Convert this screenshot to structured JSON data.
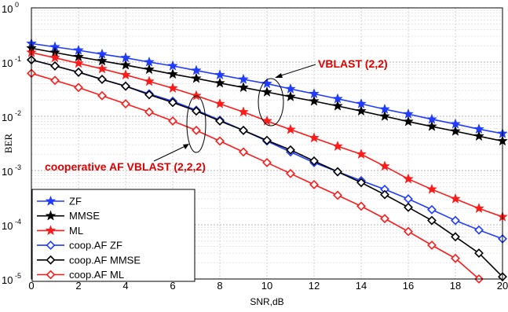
{
  "chart_data": {
    "type": "line",
    "title": "",
    "xlabel": "SNR,dB",
    "ylabel": "BER",
    "xlim": [
      0,
      20
    ],
    "ylim": [
      1e-05,
      1
    ],
    "yscale": "log",
    "grid": true,
    "legend_position": "bottom-left",
    "x_ticks": [
      0,
      2,
      4,
      6,
      8,
      10,
      12,
      14,
      16,
      18,
      20
    ],
    "x_tick_labels": [
      "0",
      "2",
      "4",
      "6",
      "8",
      "10",
      "12",
      "14",
      "16",
      "18",
      "20"
    ],
    "y_ticks": [
      1e-05,
      0.0001,
      0.001,
      0.01,
      0.1,
      1
    ],
    "y_tick_labels": [
      {
        "base": "10",
        "exp": "-5"
      },
      {
        "base": "10",
        "exp": "-4"
      },
      {
        "base": "10",
        "exp": "-3"
      },
      {
        "base": "10",
        "exp": "-2"
      },
      {
        "base": "10",
        "exp": "-1"
      },
      {
        "base": "10",
        "exp": "0"
      }
    ],
    "annotations": [
      {
        "text": "VBLAST (2,2)"
      },
      {
        "text": "cooperative AF VBLAST (2,2,2)"
      }
    ],
    "series": [
      {
        "name": "ZF",
        "color": "#1f3bff",
        "marker": "star",
        "x": [
          0,
          1,
          2,
          3,
          4,
          5,
          6,
          7,
          8,
          9,
          10,
          11,
          12,
          13,
          14,
          15,
          16,
          17,
          18,
          19,
          20
        ],
        "y": [
          0.22,
          0.19,
          0.165,
          0.14,
          0.12,
          0.1,
          0.085,
          0.07,
          0.058,
          0.048,
          0.04,
          0.032,
          0.026,
          0.021,
          0.017,
          0.0135,
          0.011,
          0.0088,
          0.0072,
          0.0058,
          0.0048
        ]
      },
      {
        "name": "MMSE",
        "color": "#000000",
        "marker": "star",
        "x": [
          0,
          1,
          2,
          3,
          4,
          5,
          6,
          7,
          8,
          9,
          10,
          11,
          12,
          13,
          14,
          15,
          16,
          17,
          18,
          19,
          20
        ],
        "y": [
          0.18,
          0.15,
          0.125,
          0.105,
          0.088,
          0.073,
          0.06,
          0.05,
          0.041,
          0.034,
          0.028,
          0.023,
          0.019,
          0.0155,
          0.0125,
          0.01,
          0.008,
          0.0065,
          0.0053,
          0.0043,
          0.0035
        ]
      },
      {
        "name": "ML",
        "color": "#ff1a1a",
        "marker": "star",
        "x": [
          0,
          1,
          2,
          3,
          4,
          5,
          6,
          7,
          8,
          9,
          10,
          11,
          12,
          13,
          14,
          15,
          16,
          17,
          18,
          19,
          20
        ],
        "y": [
          0.15,
          0.12,
          0.095,
          0.075,
          0.058,
          0.044,
          0.033,
          0.024,
          0.017,
          0.012,
          0.0082,
          0.0057,
          0.004,
          0.0028,
          0.002,
          0.0012,
          0.0007,
          0.00045,
          0.0003,
          0.0002,
          0.00014
        ]
      },
      {
        "name": "coop.AF ZF",
        "color": "#1f3bff",
        "marker": "diamond",
        "x": [
          0,
          1,
          2,
          3,
          4,
          5,
          6,
          7,
          8,
          9,
          10,
          11,
          12,
          13,
          14,
          15,
          16,
          17,
          18,
          19,
          20
        ],
        "y": [
          0.11,
          0.085,
          0.065,
          0.048,
          0.036,
          0.026,
          0.019,
          0.013,
          0.0085,
          0.0055,
          0.0035,
          0.0022,
          0.0014,
          0.00095,
          0.00065,
          0.00045,
          0.0003,
          0.00019,
          0.00012,
          8e-05,
          5.5e-05
        ]
      },
      {
        "name": "coop.AF MMSE",
        "color": "#000000",
        "marker": "diamond",
        "x": [
          0,
          1,
          2,
          3,
          4,
          5,
          6,
          7,
          8,
          9,
          10,
          11,
          12,
          13,
          14,
          15,
          16,
          17,
          18,
          19,
          20
        ],
        "y": [
          0.11,
          0.085,
          0.065,
          0.048,
          0.036,
          0.025,
          0.018,
          0.0125,
          0.0082,
          0.0055,
          0.0036,
          0.0024,
          0.0015,
          0.00095,
          0.0006,
          0.00036,
          0.00021,
          0.00012,
          6e-05,
          3e-05,
          1.1e-05
        ]
      },
      {
        "name": "coop.AF ML",
        "color": "#ff1a1a",
        "marker": "diamond",
        "x": [
          0,
          1,
          2,
          3,
          4,
          5,
          6,
          7,
          8,
          9,
          10,
          11,
          12,
          13,
          14,
          15,
          16,
          17,
          18,
          19
        ],
        "y": [
          0.062,
          0.046,
          0.034,
          0.024,
          0.017,
          0.012,
          0.0082,
          0.0055,
          0.0035,
          0.0022,
          0.0014,
          0.00088,
          0.00055,
          0.00035,
          0.00022,
          0.00013,
          7.5e-05,
          4.2e-05,
          2.4e-05,
          1e-05
        ]
      }
    ]
  }
}
